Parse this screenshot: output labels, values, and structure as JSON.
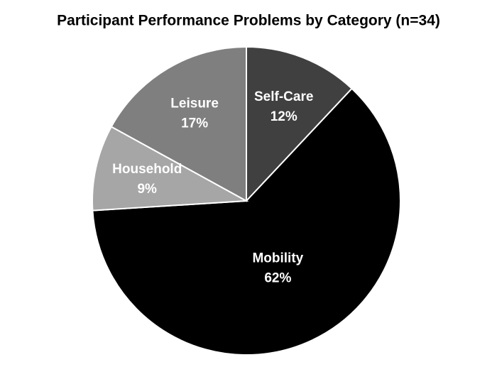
{
  "chart_data": {
    "type": "pie",
    "title": "Participant Performance Problems by Category (n=34)",
    "categories": [
      "Self-Care",
      "Mobility",
      "Household",
      "Leisure"
    ],
    "values": [
      12,
      62,
      9,
      17
    ],
    "value_labels": [
      "12%",
      "62%",
      "9%",
      "17%"
    ],
    "colors": [
      "#404040",
      "#000000",
      "#a6a6a6",
      "#7f7f7f"
    ]
  }
}
